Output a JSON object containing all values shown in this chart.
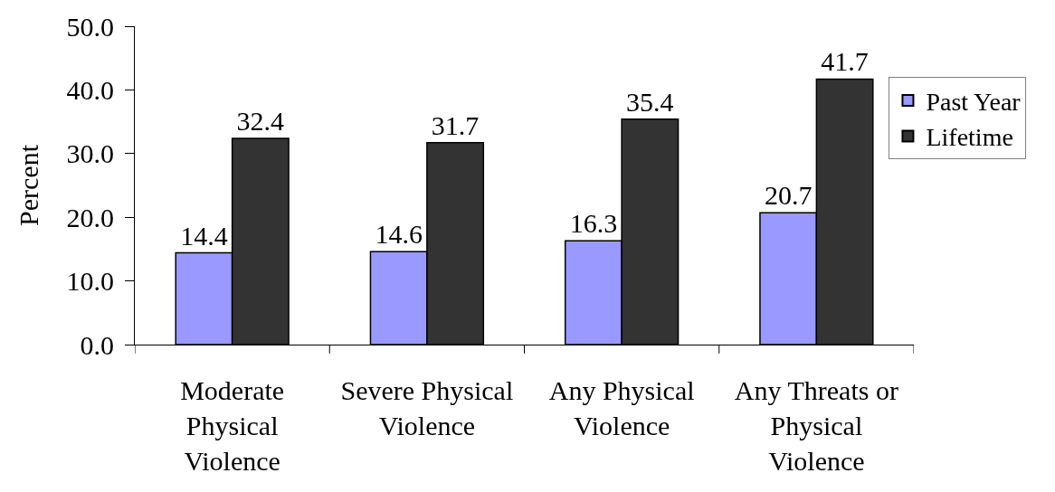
{
  "chart_data": {
    "type": "bar",
    "ylabel": "Percent",
    "categories": [
      "Moderate\nPhysical\nViolence",
      "Severe Physical\nViolence",
      "Any Physical\nViolence",
      "Any Threats or\nPhysical\nViolence"
    ],
    "series": [
      {
        "name": "Past Year",
        "color": "#9999ff",
        "values": [
          14.4,
          14.6,
          16.3,
          20.7
        ]
      },
      {
        "name": "Lifetime",
        "color": "#333333",
        "values": [
          32.4,
          31.7,
          35.4,
          41.7
        ]
      }
    ],
    "ylim": [
      0,
      50
    ],
    "yticks": [
      {
        "value": 0,
        "label": "0.0"
      },
      {
        "value": 10,
        "label": "10.0"
      },
      {
        "value": 20,
        "label": "20.0"
      },
      {
        "value": 30,
        "label": "30.0"
      },
      {
        "value": 40,
        "label": "40.0"
      },
      {
        "value": 50,
        "label": "50.0"
      }
    ],
    "data_labels": true,
    "legend": "right"
  }
}
